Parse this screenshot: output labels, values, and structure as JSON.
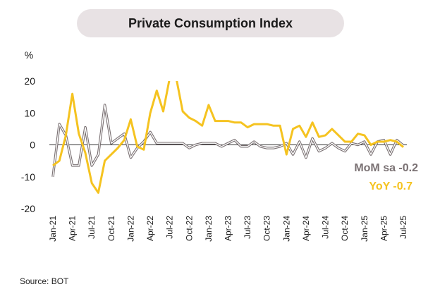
{
  "chart_data": {
    "type": "line",
    "title": "Private Consumption Index",
    "ylabel": "%",
    "ylim": [
      -20,
      20
    ],
    "yticks": [
      -20,
      -10,
      0,
      10,
      20
    ],
    "x_labels": [
      "Jan-21",
      "Apr-21",
      "Jul-21",
      "Oct-21",
      "Jan-22",
      "Apr-22",
      "Jul-22",
      "Oct-22",
      "Jan-23",
      "Apr-23",
      "Jul-23",
      "Oct-23",
      "Jan-24",
      "Apr-24",
      "Jul-24",
      "Oct-24",
      "Jan-25",
      "Apr-25",
      "Jul-25"
    ],
    "x": [
      "Jan-21",
      "Feb-21",
      "Mar-21",
      "Apr-21",
      "May-21",
      "Jun-21",
      "Jul-21",
      "Aug-21",
      "Sep-21",
      "Oct-21",
      "Nov-21",
      "Dec-21",
      "Jan-22",
      "Feb-22",
      "Mar-22",
      "Apr-22",
      "May-22",
      "Jun-22",
      "Jul-22",
      "Aug-22",
      "Sep-22",
      "Oct-22",
      "Nov-22",
      "Dec-22",
      "Jan-23",
      "Feb-23",
      "Mar-23",
      "Apr-23",
      "May-23",
      "Jun-23",
      "Jul-23",
      "Aug-23",
      "Sep-23",
      "Oct-23",
      "Nov-23",
      "Dec-23",
      "Jan-24",
      "Feb-24",
      "Mar-24",
      "Apr-24",
      "May-24",
      "Jun-24",
      "Jul-24",
      "Aug-24",
      "Sep-24",
      "Oct-24",
      "Nov-24",
      "Dec-24",
      "Jan-25",
      "Feb-25",
      "Mar-25",
      "Apr-25",
      "May-25",
      "Jun-25",
      "Jul-25"
    ],
    "series": [
      {
        "name": "MoM sa",
        "label": "MoM sa  -0.2",
        "color": "#7a7173",
        "values": [
          -10,
          6.5,
          3,
          -6.5,
          -6.5,
          5.5,
          -6.5,
          -3,
          12.5,
          0.5,
          2,
          3.5,
          -4,
          -1,
          1,
          4,
          0.5,
          0.5,
          0.5,
          0.5,
          0.5,
          -1,
          0,
          0.5,
          0.5,
          0.5,
          -0.5,
          0.5,
          1.5,
          -0.5,
          -0.5,
          1,
          -0.5,
          -1,
          -1,
          -0.5,
          0.5,
          -3,
          1,
          -4,
          2,
          -2,
          -1,
          0.5,
          -1,
          -2,
          0.5,
          0,
          1,
          -3,
          1,
          1.5,
          -3,
          1.5,
          -0.2
        ]
      },
      {
        "name": "YoY",
        "label": "YoY  -0.7",
        "color": "#f5c320",
        "values": [
          -6.5,
          -5,
          3,
          16,
          3.5,
          -2.5,
          -12,
          -15,
          -5,
          -3,
          -1,
          1.5,
          8,
          -0.5,
          -1.5,
          10,
          17,
          10.5,
          21,
          21,
          10.5,
          8.5,
          7.5,
          6,
          12.5,
          7.5,
          7.5,
          7.5,
          7,
          7,
          5.5,
          6.5,
          6.5,
          6.5,
          6,
          6,
          -3,
          5,
          6,
          2.5,
          7,
          2.5,
          3,
          5,
          3,
          1,
          1,
          3.5,
          3,
          0,
          1,
          1,
          1.5,
          1,
          -0.7
        ]
      }
    ]
  },
  "source": "Source: BOT"
}
